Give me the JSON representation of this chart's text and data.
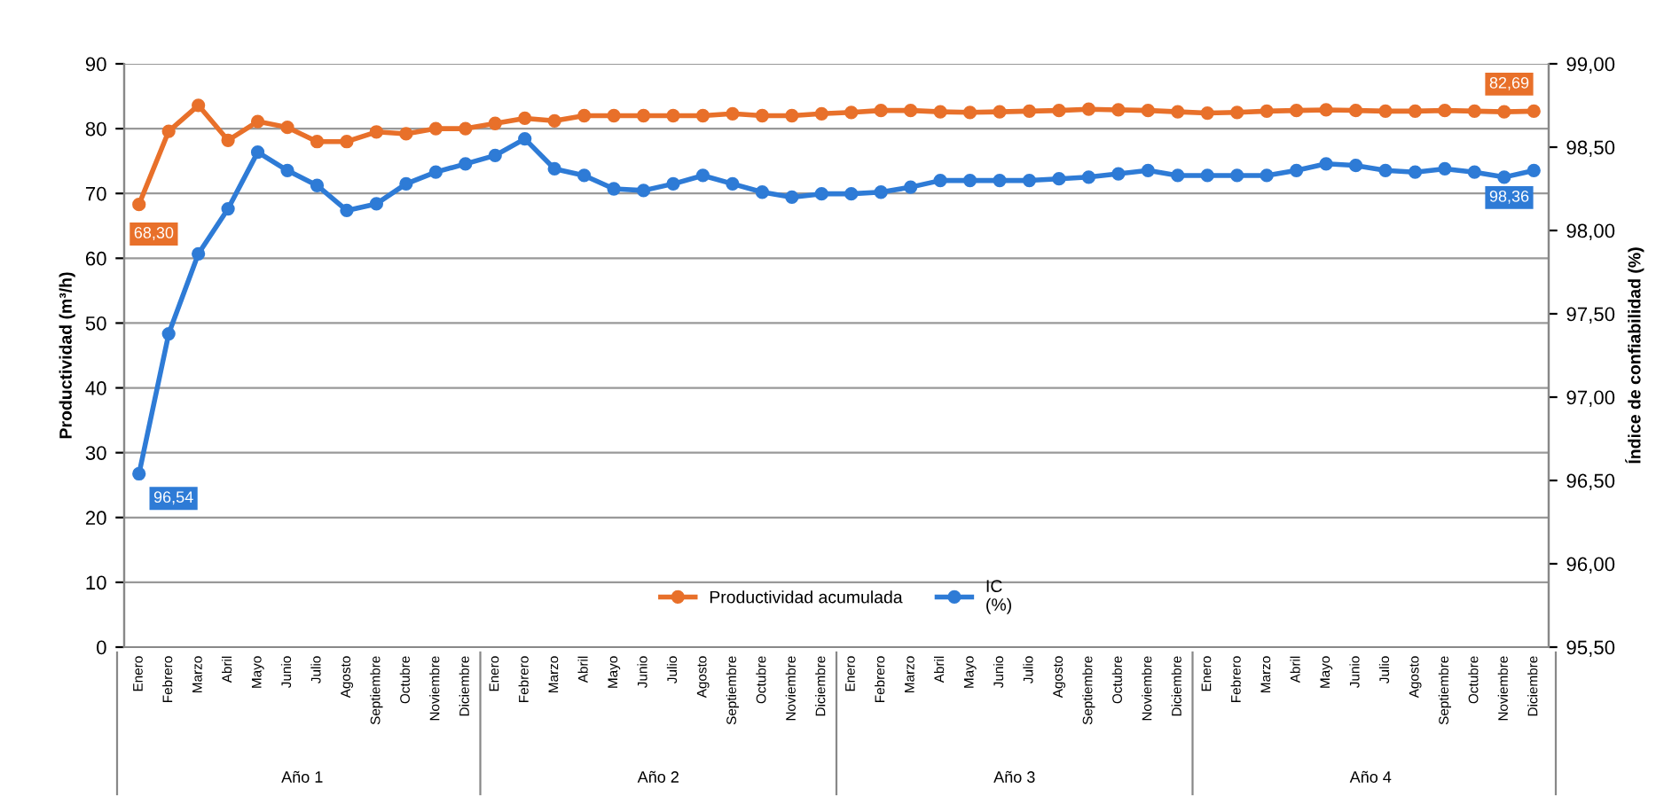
{
  "chart_data": {
    "type": "line",
    "ylabel": "Productividad (m³/h)",
    "y2label": "Índice de confiabilidad (%)",
    "categories": [
      "Enero",
      "Febrero",
      "Marzo",
      "Abril",
      "Mayo",
      "Junio",
      "Julio",
      "Agosto",
      "Septiembre",
      "Octubre",
      "Noviembre",
      "Diciembre",
      "Enero",
      "Febrero",
      "Marzo",
      "Abril",
      "Mayo",
      "Junio",
      "Julio",
      "Agosto",
      "Septiembre",
      "Octubre",
      "Noviembre",
      "Diciembre",
      "Enero",
      "Febrero",
      "Marzo",
      "Abril",
      "Mayo",
      "Junio",
      "Julio",
      "Agosto",
      "Septiembre",
      "Octubre",
      "Noviembre",
      "Diciembre",
      "Enero",
      "Febrero",
      "Marzo",
      "Abril",
      "Mayo",
      "Junio",
      "Julio",
      "Agosto",
      "Septiembre",
      "Octubre",
      "Noviembre",
      "Diciembre"
    ],
    "annotations": [
      "Año 1",
      "Año 2",
      "Año 3",
      "Año 4"
    ],
    "series": [
      {
        "name": "Productividad acumulada",
        "color": "#e8702a",
        "values": [
          68.3,
          79.6,
          83.6,
          78.2,
          81.1,
          80.2,
          78.0,
          78.0,
          79.5,
          79.2,
          80.0,
          80.0,
          80.8,
          81.6,
          81.2,
          82.0,
          82.0,
          82.0,
          82.0,
          82.0,
          82.3,
          82.0,
          82.0,
          82.3,
          82.5,
          82.8,
          82.8,
          82.6,
          82.5,
          82.6,
          82.7,
          82.8,
          83.0,
          82.9,
          82.8,
          82.6,
          82.4,
          82.5,
          82.7,
          82.8,
          82.9,
          82.8,
          82.7,
          82.7,
          82.8,
          82.7,
          82.6,
          82.69
        ],
        "value_labels": [
          "68,30",
          null,
          null,
          null,
          null,
          null,
          null,
          null,
          null,
          null,
          null,
          null,
          null,
          null,
          null,
          null,
          null,
          null,
          null,
          null,
          null,
          null,
          null,
          null,
          null,
          null,
          null,
          null,
          null,
          null,
          null,
          null,
          null,
          null,
          null,
          null,
          null,
          null,
          null,
          null,
          null,
          null,
          null,
          null,
          null,
          null,
          null,
          "82,69"
        ]
      },
      {
        "name": "IC\n(%)",
        "color": "#2e7bd6",
        "axis": "y2",
        "values": [
          96.54,
          97.38,
          97.86,
          98.13,
          98.47,
          98.36,
          98.27,
          98.12,
          98.16,
          98.28,
          98.35,
          98.4,
          98.45,
          98.55,
          98.37,
          98.33,
          98.25,
          98.24,
          98.28,
          98.33,
          98.28,
          98.23,
          98.2,
          98.22,
          98.22,
          98.23,
          98.26,
          98.3,
          98.3,
          98.3,
          98.3,
          98.31,
          98.32,
          98.34,
          98.36,
          98.33,
          98.33,
          98.33,
          98.33,
          98.36,
          98.4,
          98.39,
          98.36,
          98.35,
          98.37,
          98.35,
          98.32,
          98.36
        ],
        "value_labels": [
          "96,54",
          null,
          null,
          null,
          null,
          null,
          null,
          null,
          null,
          null,
          null,
          null,
          null,
          null,
          null,
          null,
          null,
          null,
          null,
          null,
          null,
          null,
          null,
          null,
          null,
          null,
          null,
          null,
          null,
          null,
          null,
          null,
          null,
          null,
          null,
          null,
          null,
          null,
          null,
          null,
          null,
          null,
          null,
          null,
          null,
          null,
          null,
          "98,36"
        ]
      }
    ],
    "ylim": [
      0,
      90
    ],
    "yticks": [
      0,
      10,
      20,
      30,
      40,
      50,
      60,
      70,
      80,
      90
    ],
    "y2lim": [
      95.5,
      99.0
    ],
    "y2ticks": [
      {
        "value": 95.5,
        "label": "95,50"
      },
      {
        "value": 96.0,
        "label": "96,00"
      },
      {
        "value": 96.5,
        "label": "96,50"
      },
      {
        "value": 97.0,
        "label": "97,00"
      },
      {
        "value": 97.5,
        "label": "97,50"
      },
      {
        "value": 98.0,
        "label": "98,00"
      },
      {
        "value": 98.5,
        "label": "98,50"
      },
      {
        "value": 99.0,
        "label": "99,00"
      }
    ],
    "grid": "y",
    "legend": "bottom",
    "marker": "circle",
    "line_style": "solid"
  }
}
